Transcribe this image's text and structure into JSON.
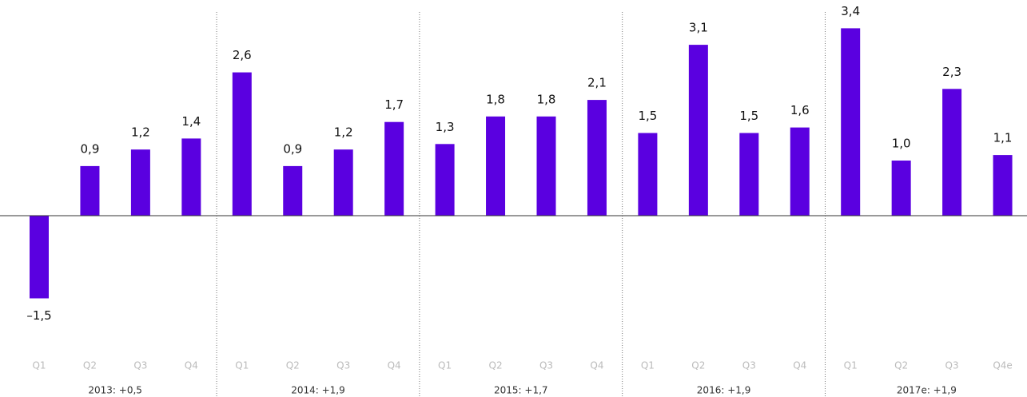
{
  "chart_data": {
    "type": "bar",
    "categories": [
      "Q1",
      "Q2",
      "Q3",
      "Q4",
      "Q1",
      "Q2",
      "Q3",
      "Q4",
      "Q1",
      "Q2",
      "Q3",
      "Q4",
      "Q1",
      "Q2",
      "Q3",
      "Q4",
      "Q1",
      "Q2",
      "Q3",
      "Q4e"
    ],
    "values": [
      -1.5,
      0.9,
      1.2,
      1.4,
      2.6,
      0.9,
      1.2,
      1.7,
      1.3,
      1.8,
      1.8,
      2.1,
      1.5,
      3.1,
      1.5,
      1.6,
      3.4,
      1.0,
      2.3,
      1.1
    ],
    "value_labels": [
      "–1,5",
      "0,9",
      "1,2",
      "1,4",
      "2,6",
      "0,9",
      "1,2",
      "1,7",
      "1,3",
      "1,8",
      "1,8",
      "2,1",
      "1,5",
      "3,1",
      "1,5",
      "1,6",
      "3,4",
      "1,0",
      "2,3",
      "1,1"
    ],
    "groups": [
      "2013: +0,5",
      "2014: +1,9",
      "2015: +1,7",
      "2016: +1,9",
      "2017e: +1,9"
    ],
    "color": "#5a00e0"
  }
}
